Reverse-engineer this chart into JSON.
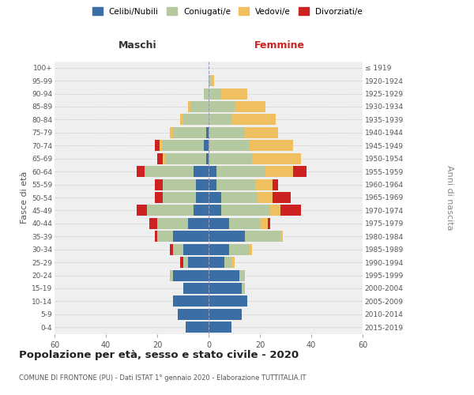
{
  "age_groups": [
    "0-4",
    "5-9",
    "10-14",
    "15-19",
    "20-24",
    "25-29",
    "30-34",
    "35-39",
    "40-44",
    "45-49",
    "50-54",
    "55-59",
    "60-64",
    "65-69",
    "70-74",
    "75-79",
    "80-84",
    "85-89",
    "90-94",
    "95-99",
    "100+"
  ],
  "birth_years": [
    "2015-2019",
    "2010-2014",
    "2005-2009",
    "2000-2004",
    "1995-1999",
    "1990-1994",
    "1985-1989",
    "1980-1984",
    "1975-1979",
    "1970-1974",
    "1965-1969",
    "1960-1964",
    "1955-1959",
    "1950-1954",
    "1945-1949",
    "1940-1944",
    "1935-1939",
    "1930-1934",
    "1925-1929",
    "1920-1924",
    "≤ 1919"
  ],
  "colors": {
    "celibi": "#3a6ea5",
    "coniugati": "#b5c9a0",
    "vedovi": "#f0c060",
    "divorziati": "#cc2222"
  },
  "males": {
    "celibi": [
      9,
      12,
      14,
      10,
      14,
      8,
      10,
      14,
      8,
      6,
      5,
      5,
      6,
      1,
      2,
      1,
      0,
      0,
      0,
      0,
      0
    ],
    "coniugati": [
      0,
      0,
      0,
      0,
      1,
      2,
      4,
      6,
      12,
      18,
      13,
      13,
      19,
      16,
      16,
      13,
      10,
      7,
      2,
      0,
      0
    ],
    "vedovi": [
      0,
      0,
      0,
      0,
      0,
      0,
      0,
      0,
      0,
      0,
      0,
      0,
      0,
      1,
      1,
      1,
      1,
      1,
      0,
      0,
      0
    ],
    "divorziati": [
      0,
      0,
      0,
      0,
      0,
      1,
      1,
      1,
      3,
      4,
      3,
      3,
      3,
      2,
      2,
      0,
      0,
      0,
      0,
      0,
      0
    ]
  },
  "females": {
    "celibi": [
      9,
      13,
      15,
      13,
      12,
      6,
      8,
      14,
      8,
      5,
      5,
      3,
      3,
      0,
      0,
      0,
      0,
      0,
      0,
      0,
      0
    ],
    "coniugati": [
      0,
      0,
      0,
      1,
      2,
      3,
      8,
      14,
      12,
      19,
      14,
      15,
      19,
      17,
      16,
      14,
      9,
      10,
      5,
      1,
      0
    ],
    "vedovi": [
      0,
      0,
      0,
      0,
      0,
      1,
      1,
      1,
      3,
      4,
      6,
      7,
      11,
      19,
      17,
      13,
      17,
      12,
      10,
      1,
      0
    ],
    "divorziati": [
      0,
      0,
      0,
      0,
      0,
      0,
      0,
      0,
      1,
      8,
      7,
      2,
      5,
      0,
      0,
      0,
      0,
      0,
      0,
      0,
      0
    ]
  },
  "xlim": 60,
  "title": "Popolazione per età, sesso e stato civile - 2020",
  "subtitle": "COMUNE DI FRONTONE (PU) - Dati ISTAT 1° gennaio 2020 - Elaborazione TUTTITALIA.IT",
  "ylabel_left": "Fasce di età",
  "ylabel_right": "Anni di nascita",
  "xlabel_left": "Maschi",
  "xlabel_right": "Femmine",
  "bg_color": "#efefef",
  "grid_color": "#cccccc"
}
